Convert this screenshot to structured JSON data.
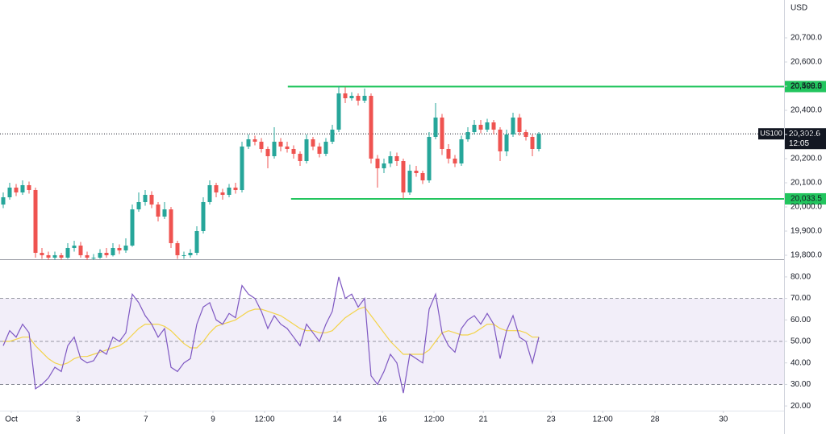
{
  "chart_data": [
    {
      "type": "candlestick",
      "symbol": "US100",
      "currency": "USD",
      "countdown": "12:05",
      "up_color": "#26a69a",
      "down_color": "#ef5350",
      "x": [
        0,
        1,
        2,
        3,
        4,
        5,
        6,
        7,
        8,
        9,
        10,
        11,
        12,
        13,
        14,
        15,
        16,
        17,
        18,
        19,
        20,
        21,
        22,
        23,
        24,
        25,
        26,
        27,
        28,
        29,
        30,
        31,
        32,
        33,
        34,
        35,
        36,
        37,
        38,
        39,
        40,
        41,
        42,
        43,
        44,
        45,
        46,
        47,
        48,
        49,
        50,
        51,
        52,
        53,
        54,
        55,
        56,
        57,
        58,
        59,
        60,
        61,
        62,
        63,
        64,
        65,
        66,
        67,
        68,
        69,
        70,
        71,
        72,
        73,
        74,
        75,
        76,
        77,
        78,
        79,
        80,
        81,
        82,
        83
      ],
      "open": [
        20010,
        20040,
        20080,
        20060,
        20090,
        20070,
        19810,
        19800,
        19790,
        19800,
        19790,
        19830,
        19840,
        19800,
        19790,
        19790,
        19810,
        19800,
        19830,
        19820,
        19840,
        19990,
        20020,
        20050,
        20010,
        19960,
        19990,
        19850,
        19800,
        19800,
        19810,
        19900,
        20020,
        20090,
        20060,
        20050,
        20080,
        20070,
        20250,
        20280,
        20270,
        20240,
        20210,
        20270,
        20250,
        20240,
        20220,
        20190,
        20280,
        20250,
        20220,
        20270,
        20320,
        20470,
        20450,
        20460,
        20440,
        20460,
        20200,
        20160,
        20180,
        20210,
        20190,
        20060,
        20150,
        20140,
        20110,
        20290,
        20370,
        20240,
        20200,
        20180,
        20280,
        20310,
        20340,
        20320,
        20350,
        20320,
        20230,
        20300,
        20370,
        20310,
        20290,
        20240
      ],
      "high": [
        20060,
        20100,
        20095,
        20110,
        20105,
        20080,
        19830,
        19815,
        19815,
        19810,
        19850,
        19860,
        19855,
        19815,
        19805,
        19825,
        19830,
        19850,
        19845,
        19870,
        20010,
        20060,
        20070,
        20065,
        20020,
        20020,
        20000,
        19860,
        19815,
        19825,
        19920,
        20040,
        20110,
        20100,
        20075,
        20095,
        20100,
        20270,
        20300,
        20295,
        20285,
        20250,
        20330,
        20285,
        20270,
        20255,
        20230,
        20300,
        20290,
        20265,
        20285,
        20340,
        20500,
        20495,
        20475,
        20470,
        20490,
        20470,
        20215,
        20200,
        20230,
        20225,
        20200,
        20175,
        20170,
        20150,
        20310,
        20430,
        20385,
        20260,
        20215,
        20295,
        20330,
        20360,
        20360,
        20365,
        20360,
        20330,
        20320,
        20390,
        20385,
        20320,
        20300,
        20310
      ],
      "low": [
        19995,
        20030,
        20045,
        20050,
        20055,
        19790,
        19785,
        19780,
        19780,
        19780,
        19785,
        19815,
        19790,
        19780,
        19780,
        19785,
        19790,
        19795,
        19805,
        19810,
        19835,
        19980,
        20005,
        19995,
        19940,
        19950,
        19830,
        19785,
        19785,
        19790,
        19800,
        19890,
        20010,
        20040,
        20030,
        20040,
        20055,
        20060,
        20240,
        20255,
        20225,
        20160,
        20200,
        20230,
        20225,
        20200,
        20170,
        20180,
        20235,
        20205,
        20210,
        20260,
        20310,
        20430,
        20440,
        20420,
        20430,
        20180,
        20080,
        20140,
        20165,
        20170,
        20035,
        20050,
        20125,
        20095,
        20100,
        20280,
        20215,
        20180,
        20165,
        20170,
        20270,
        20300,
        20305,
        20310,
        20300,
        20190,
        20210,
        20290,
        20295,
        20275,
        20210,
        20230
      ],
      "close": [
        20040,
        20080,
        20060,
        20090,
        20070,
        19810,
        19800,
        19790,
        19800,
        19790,
        19830,
        19840,
        19800,
        19790,
        19790,
        19810,
        19800,
        19830,
        19820,
        19840,
        19990,
        20020,
        20050,
        20010,
        19960,
        19990,
        19850,
        19800,
        19800,
        19810,
        19900,
        20020,
        20090,
        20060,
        20050,
        20080,
        20070,
        20250,
        20280,
        20270,
        20240,
        20210,
        20270,
        20250,
        20240,
        20220,
        20190,
        20280,
        20250,
        20220,
        20270,
        20320,
        20470,
        20450,
        20460,
        20440,
        20460,
        20200,
        20160,
        20180,
        20210,
        20190,
        20060,
        20150,
        20140,
        20110,
        20290,
        20370,
        20240,
        20200,
        20180,
        20280,
        20310,
        20340,
        20320,
        20350,
        20320,
        20230,
        20300,
        20370,
        20310,
        20290,
        20240,
        20302.6
      ],
      "last": {
        "value": 20302.6,
        "label": "20,302.6"
      },
      "levels": [
        {
          "value": 20498.3,
          "label": "20,498.3",
          "x0": 44.1,
          "color": "#22c55e"
        },
        {
          "value": 20033.5,
          "label": "20,033.5",
          "x0": 44.6,
          "color": "#22c55e"
        }
      ],
      "xlim": [
        -0.5,
        121
      ],
      "ylim": [
        19783.3,
        20856.7
      ],
      "yticks": [
        {
          "value": 20700,
          "label": "20,700.0"
        },
        {
          "value": 20600,
          "label": "20,600.0"
        },
        {
          "value": 20500,
          "label": "20,500.0"
        },
        {
          "value": 20400,
          "label": "20,400.0"
        },
        {
          "value": 20300,
          "label": "20,300.0"
        },
        {
          "value": 20200,
          "label": "20,200.0"
        },
        {
          "value": 20100,
          "label": "20,100.0"
        },
        {
          "value": 20000,
          "label": "20,000.0"
        },
        {
          "value": 19900,
          "label": "19,900.0"
        },
        {
          "value": 19800,
          "label": "19,800.0"
        }
      ]
    },
    {
      "type": "line",
      "x": [
        0,
        1,
        2,
        3,
        4,
        5,
        6,
        7,
        8,
        9,
        10,
        11,
        12,
        13,
        14,
        15,
        16,
        17,
        18,
        19,
        20,
        21,
        22,
        23,
        24,
        25,
        26,
        27,
        28,
        29,
        30,
        31,
        32,
        33,
        34,
        35,
        36,
        37,
        38,
        39,
        40,
        41,
        42,
        43,
        44,
        45,
        46,
        47,
        48,
        49,
        50,
        51,
        52,
        53,
        54,
        55,
        56,
        57,
        58,
        59,
        60,
        61,
        62,
        63,
        64,
        65,
        66,
        67,
        68,
        69,
        70,
        71,
        72,
        73,
        74,
        75,
        76,
        77,
        78,
        79,
        80,
        81,
        82,
        83
      ],
      "series": [
        {
          "color": "#7e57c2",
          "values": [
            48,
            55,
            52,
            58,
            54,
            28,
            30,
            33,
            38,
            36,
            48,
            52,
            42,
            40,
            41,
            46,
            44,
            52,
            50,
            54,
            72,
            68,
            62,
            58,
            52,
            56,
            38,
            36,
            40,
            42,
            58,
            66,
            68,
            60,
            58,
            63,
            61,
            76,
            72,
            70,
            64,
            56,
            62,
            58,
            56,
            52,
            48,
            58,
            54,
            50,
            58,
            64,
            80,
            70,
            72,
            66,
            70,
            34,
            30,
            36,
            44,
            40,
            26,
            44,
            42,
            40,
            65,
            72,
            54,
            48,
            45,
            56,
            60,
            62,
            58,
            63,
            58,
            42,
            55,
            62,
            52,
            50,
            40,
            52
          ]
        },
        {
          "color": "#f3d34a",
          "values": [
            50,
            50,
            51,
            52,
            52,
            48,
            45,
            42,
            40,
            39,
            40,
            42,
            43,
            43,
            44,
            45,
            46,
            47,
            48,
            50,
            53,
            56,
            58,
            58,
            58,
            57,
            55,
            52,
            49,
            47,
            47,
            50,
            54,
            57,
            58,
            59,
            60,
            62,
            64,
            65,
            65,
            64,
            63,
            62,
            60,
            58,
            56,
            55,
            55,
            54,
            54,
            55,
            58,
            61,
            63,
            65,
            66,
            62,
            58,
            54,
            50,
            47,
            44,
            44,
            44,
            44,
            46,
            50,
            54,
            55,
            54,
            53,
            53,
            54,
            56,
            58,
            58,
            56,
            55,
            55,
            55,
            54,
            52,
            52
          ]
        }
      ],
      "levels": [
        70,
        50,
        30
      ],
      "xlim": [
        -0.5,
        121
      ],
      "ylim": [
        17.8,
        88.2
      ],
      "yticks": [
        {
          "value": 80,
          "label": "80.00"
        },
        {
          "value": 70,
          "label": "70.00"
        },
        {
          "value": 60,
          "label": "60.00"
        },
        {
          "value": 50,
          "label": "50.00"
        },
        {
          "value": 40,
          "label": "40.00"
        },
        {
          "value": 30,
          "label": "30.00"
        },
        {
          "value": 20,
          "label": "20.00"
        }
      ],
      "xticks": [
        {
          "value": 1.25,
          "label": "Oct"
        },
        {
          "value": 11.6,
          "label": "3"
        },
        {
          "value": 22.1,
          "label": "7"
        },
        {
          "value": 32.5,
          "label": "9"
        },
        {
          "value": 40.5,
          "label": "12:00"
        },
        {
          "value": 51.75,
          "label": "14"
        },
        {
          "value": 58.75,
          "label": "16"
        },
        {
          "value": 66.75,
          "label": "12:00"
        },
        {
          "value": 74.4,
          "label": "21"
        },
        {
          "value": 84.9,
          "label": "23"
        },
        {
          "value": 92.9,
          "label": "12:00"
        },
        {
          "value": 101,
          "label": "28"
        },
        {
          "value": 111.6,
          "label": "30"
        }
      ]
    }
  ]
}
